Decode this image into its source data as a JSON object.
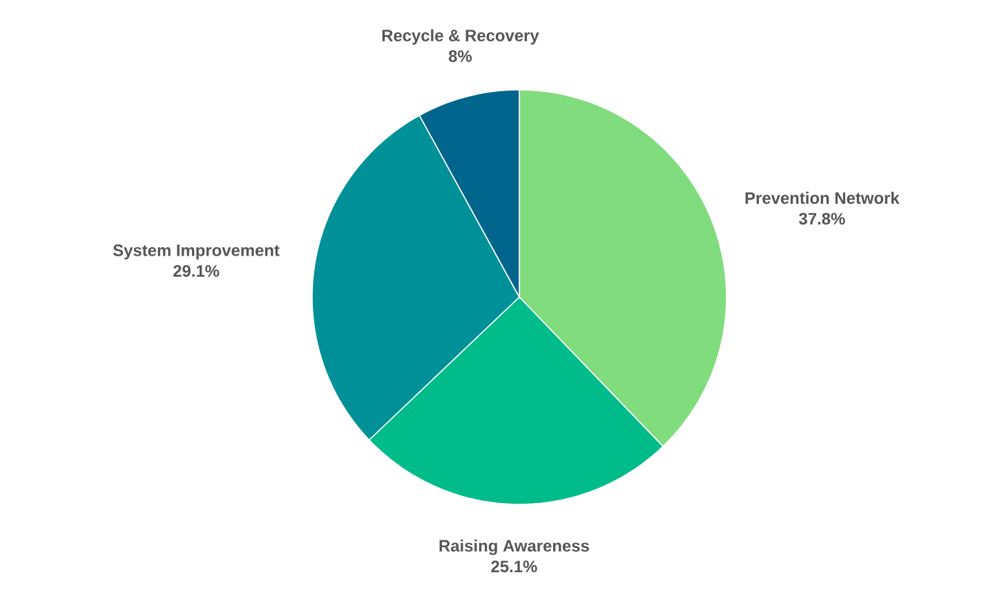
{
  "chart_data": {
    "type": "pie",
    "categories": [
      "Prevention Network",
      "Raising Awareness",
      "System Improvement",
      "Recycle & Recovery"
    ],
    "values": [
      37.8,
      25.1,
      29.1,
      8
    ],
    "value_labels": [
      "37.8%",
      "25.1%",
      "29.1%",
      "8%"
    ],
    "colors": [
      "#80dc7c",
      "#00bb8a",
      "#009098",
      "#00658c"
    ]
  }
}
